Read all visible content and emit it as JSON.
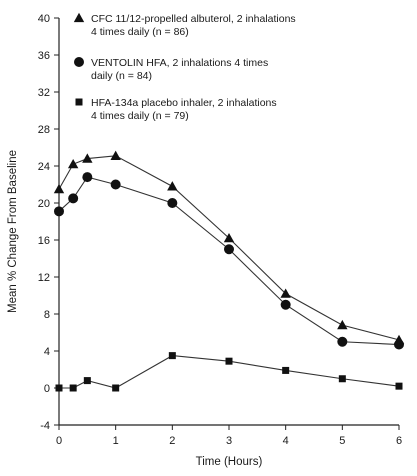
{
  "chart_data": {
    "type": "line",
    "title": "",
    "xlabel": "Time (Hours)",
    "ylabel": "Mean % Change From Baseline",
    "xlim": [
      0,
      6
    ],
    "ylim": [
      -4,
      40
    ],
    "x_ticks": [
      0,
      1,
      2,
      3,
      4,
      5,
      6
    ],
    "y_ticks": [
      -4,
      0,
      4,
      8,
      12,
      16,
      20,
      24,
      28,
      32,
      36,
      40
    ],
    "grid": false,
    "legend_position": "top-left",
    "series": [
      {
        "name": "CFC 11/12-propelled albuterol, 2 inhalations 4 times daily (n = 86)",
        "legend_lines": [
          "CFC 11/12-propelled albuterol, 2 inhalations",
          "4 times daily (n = 86)"
        ],
        "marker": "triangle",
        "x": [
          0,
          0.25,
          0.5,
          1,
          2,
          3,
          4,
          5,
          6
        ],
        "y": [
          21.5,
          24.2,
          24.8,
          25.1,
          21.8,
          16.2,
          10.2,
          6.8,
          5.2
        ]
      },
      {
        "name": "VENTOLIN HFA, 2 inhalations 4 times daily (n = 84)",
        "legend_lines": [
          "VENTOLIN HFA, 2 inhalations 4 times",
          "daily (n = 84)"
        ],
        "marker": "circle",
        "x": [
          0,
          0.25,
          0.5,
          1,
          2,
          3,
          4,
          5,
          6
        ],
        "y": [
          19.1,
          20.5,
          22.8,
          22.0,
          20.0,
          15.0,
          9.0,
          5.0,
          4.7
        ]
      },
      {
        "name": "HFA-134a placebo inhaler, 2 inhalations 4 times daily (n = 79)",
        "legend_lines": [
          "HFA-134a placebo inhaler, 2 inhalations",
          "4 times daily (n = 79)"
        ],
        "marker": "square",
        "x": [
          0,
          0.25,
          0.5,
          1,
          2,
          3,
          4,
          5,
          6
        ],
        "y": [
          0,
          0,
          0.8,
          0,
          3.5,
          2.9,
          1.9,
          1.0,
          0.2
        ]
      }
    ]
  }
}
